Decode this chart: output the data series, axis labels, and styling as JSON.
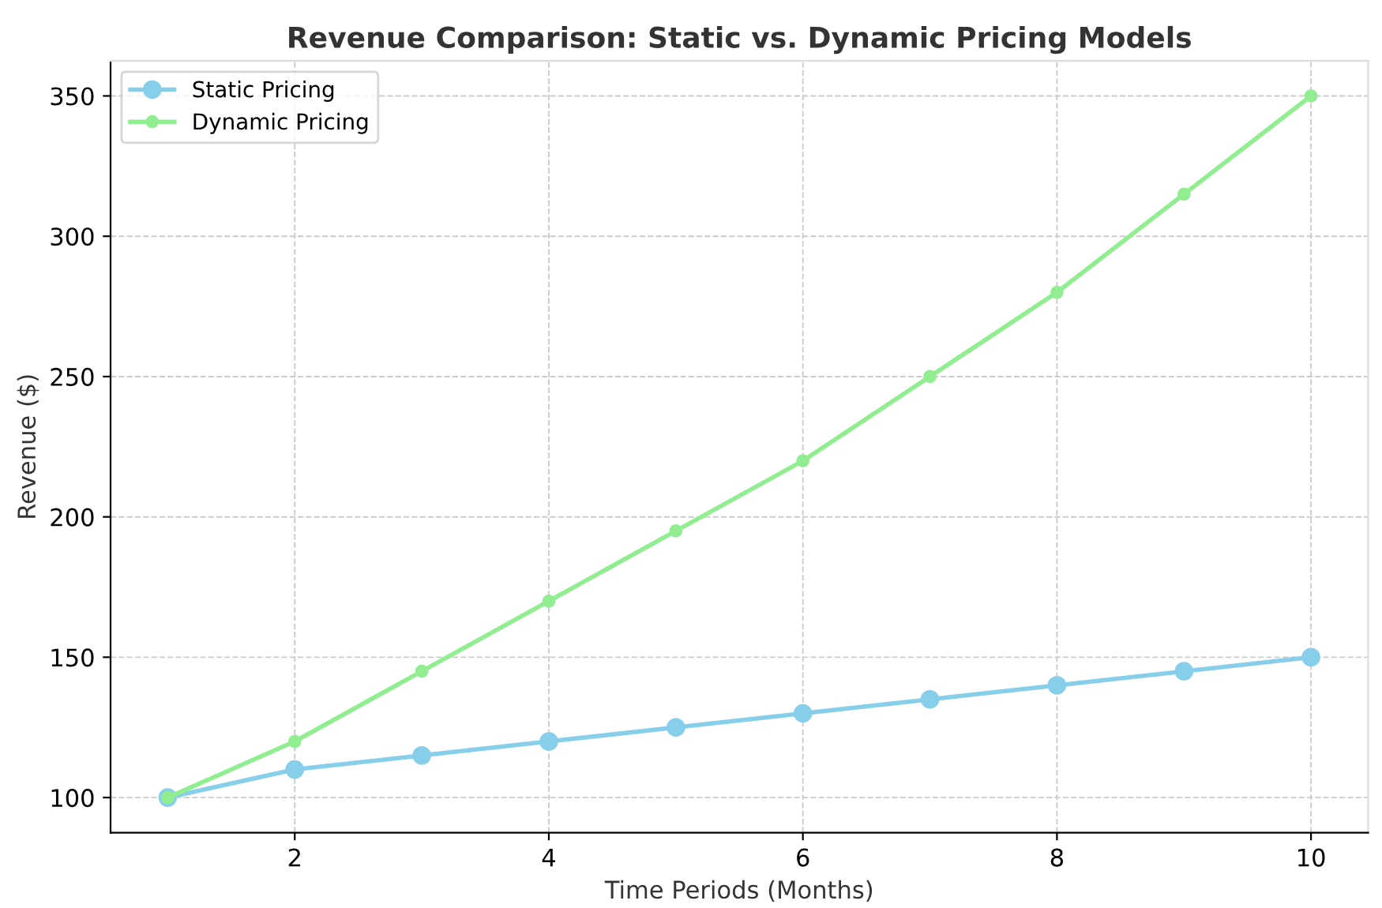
{
  "chart_data": {
    "type": "line",
    "title": "Revenue Comparison: Static vs. Dynamic Pricing Models",
    "xlabel": "Time Periods (Months)",
    "ylabel": "Revenue ($)",
    "x": [
      1,
      2,
      3,
      4,
      5,
      6,
      7,
      8,
      9,
      10
    ],
    "series": [
      {
        "name": "Static Pricing",
        "color": "#87ceeb",
        "values": [
          100,
          110,
          115,
          120,
          125,
          130,
          135,
          140,
          145,
          150
        ]
      },
      {
        "name": "Dynamic Pricing",
        "color": "#90ee90",
        "values": [
          100,
          120,
          145,
          170,
          195,
          220,
          250,
          280,
          315,
          350
        ]
      }
    ],
    "xlim": [
      0.55,
      10.45
    ],
    "ylim": [
      87.5,
      362.5
    ],
    "xticks": [
      2,
      4,
      6,
      8,
      10
    ],
    "yticks": [
      100,
      150,
      200,
      250,
      300,
      350
    ],
    "grid": true,
    "legend": "top left",
    "marker": "circle",
    "line_style": "solid"
  }
}
